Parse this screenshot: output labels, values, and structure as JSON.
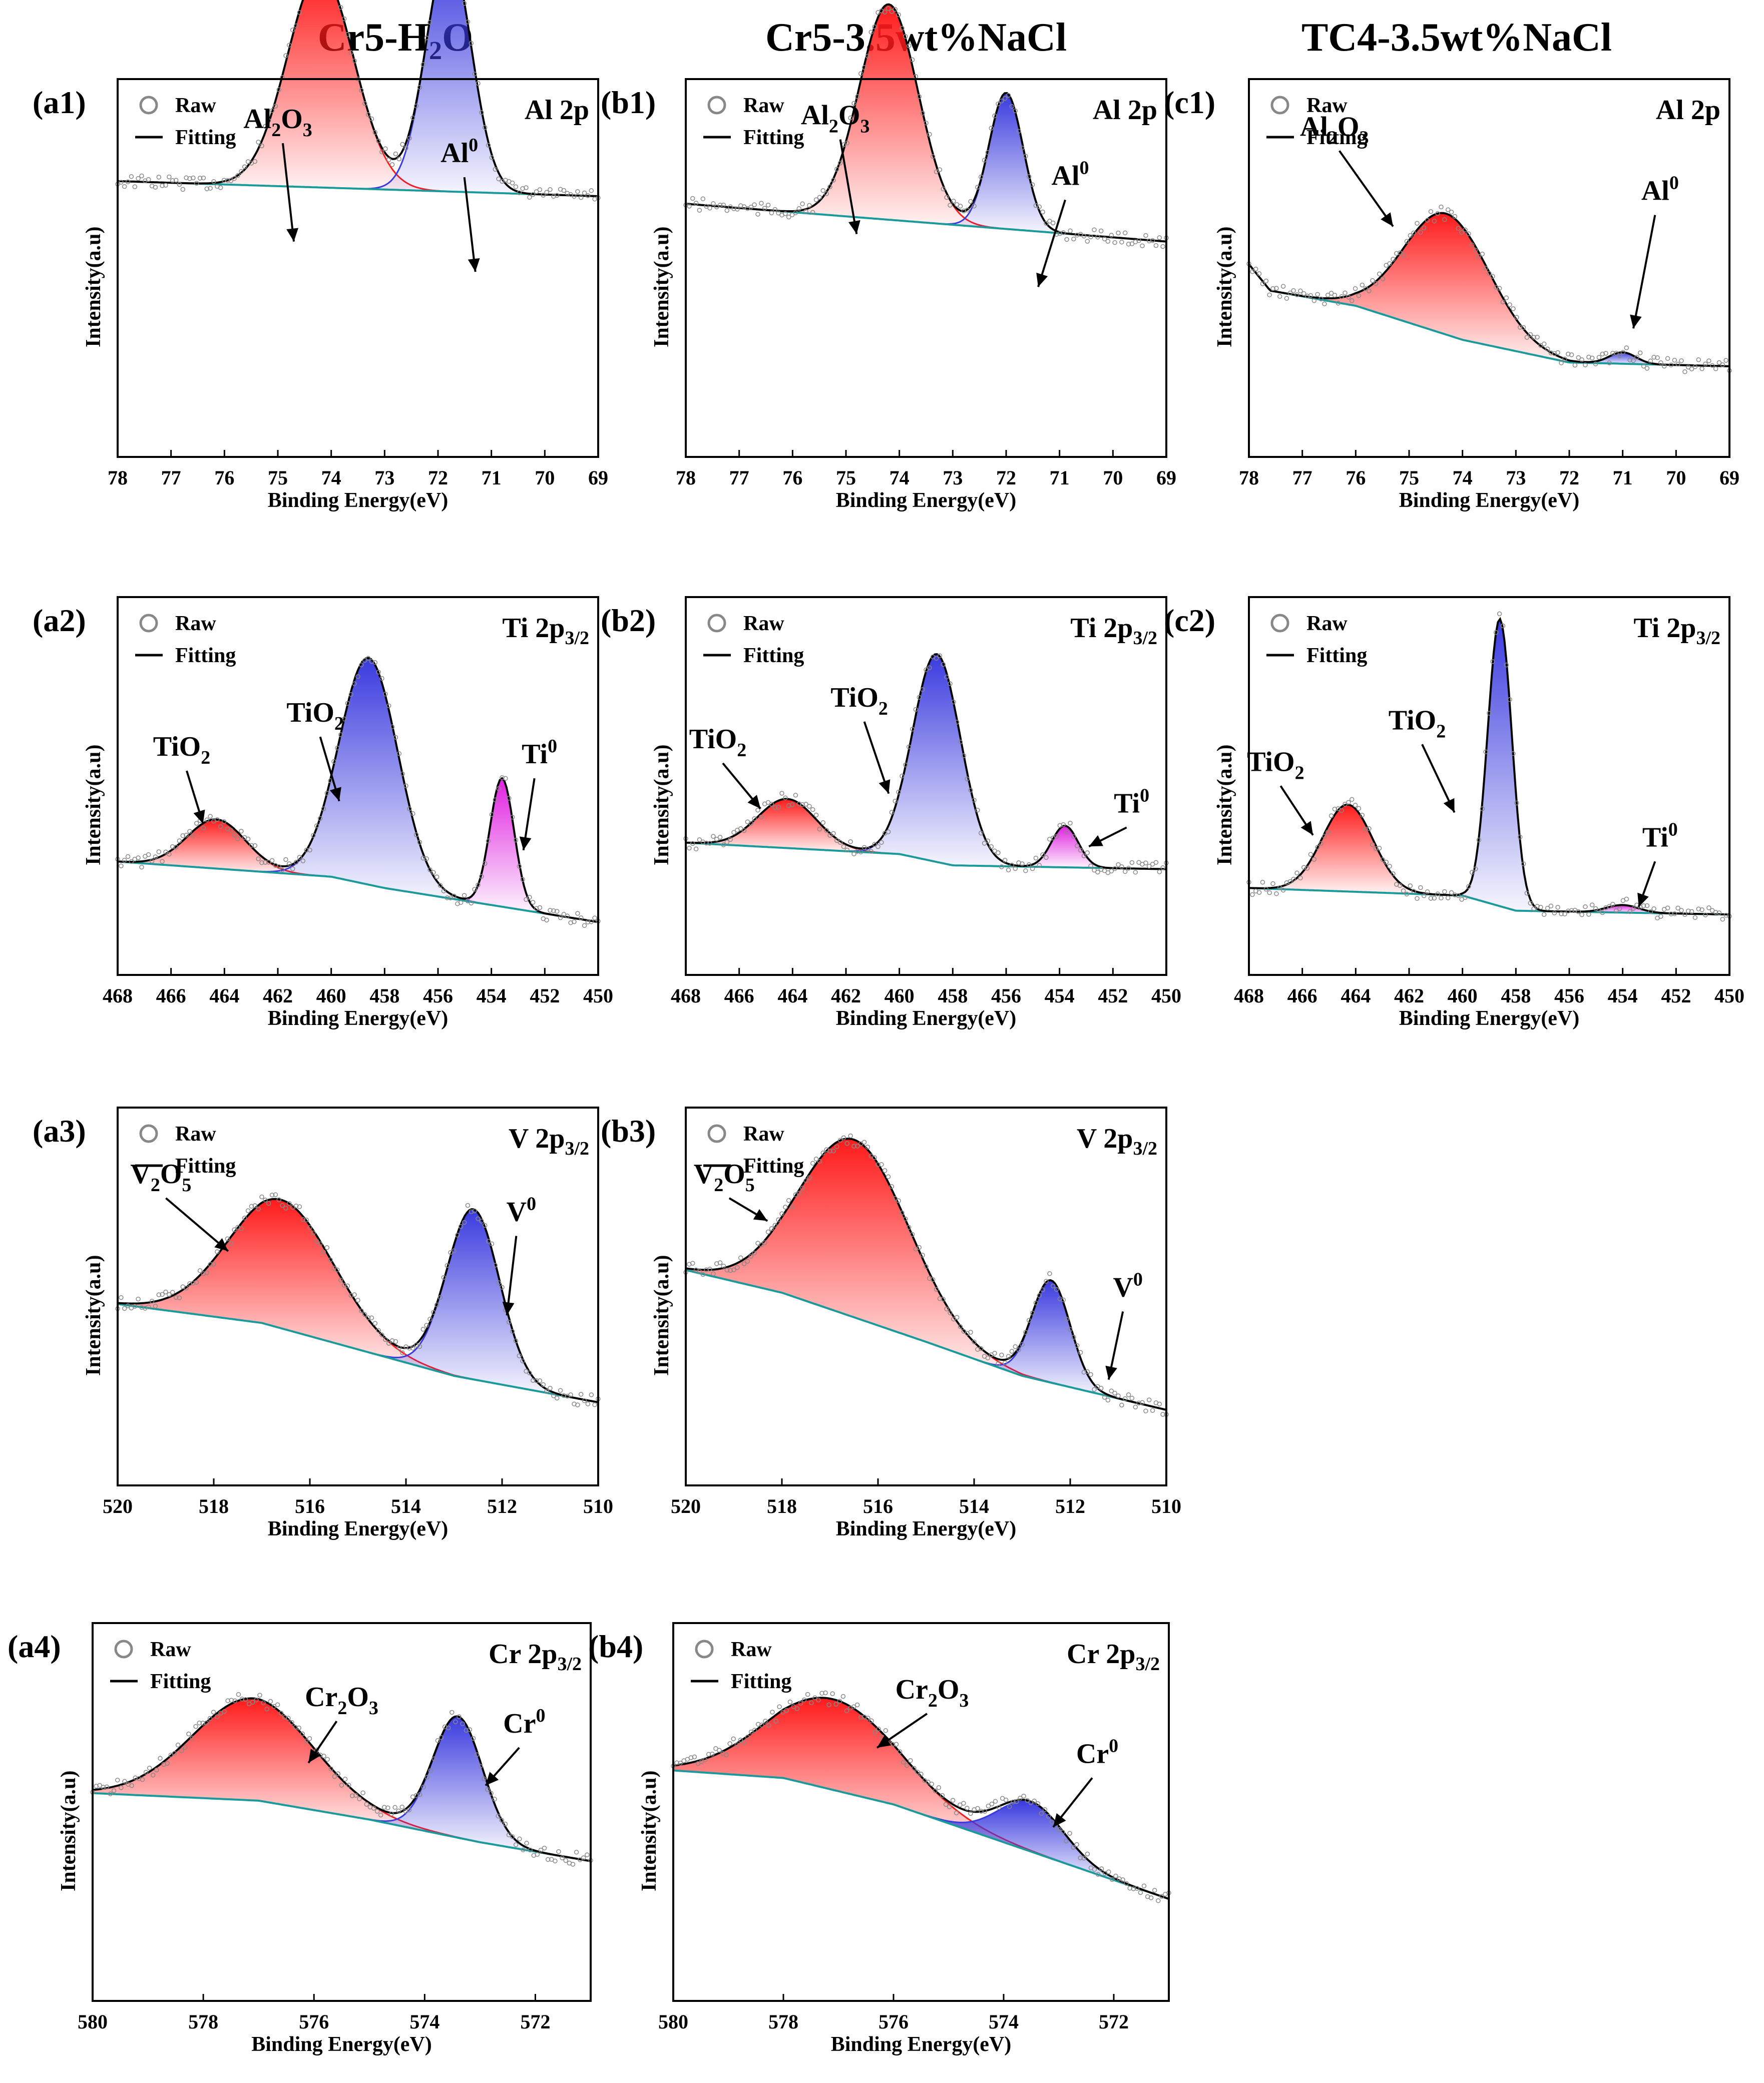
{
  "column_titles": [
    {
      "base": "Cr5-H",
      "sub": "2",
      "rest": "O"
    },
    {
      "base": "Cr5-3.5wt%NaCl",
      "sub": "",
      "rest": ""
    },
    {
      "base": "TC4-3.5wt%NaCl",
      "sub": "",
      "rest": ""
    }
  ],
  "legend": {
    "raw": "Raw",
    "fitting": "Fitting"
  },
  "colors": {
    "red": "#ff1a1a",
    "blue": "#3a3adf",
    "magenta": "#e020e0",
    "base": "#1a9a9a",
    "fit": "#000000",
    "raw": "#888888"
  },
  "chart_data": [
    {
      "id": "a1",
      "label": "(a1)",
      "type": "line",
      "element": "Al 2p",
      "element_base": "Al 2p",
      "element_sub": "",
      "xlabel": "Binding Energy(eV)",
      "ylabel": "Intensity(a.u)",
      "xlim": [
        78,
        69
      ],
      "ticks": [
        78,
        77,
        76,
        75,
        74,
        73,
        72,
        71,
        70,
        69
      ],
      "baseline": [
        [
          78,
          0.27
        ],
        [
          69,
          0.31
        ]
      ],
      "peaks": [
        {
          "center": 74.2,
          "height": 0.57,
          "width": 0.62,
          "color": "red",
          "name": "Al2O3"
        },
        {
          "center": 71.8,
          "height": 0.64,
          "width": 0.42,
          "color": "blue",
          "name": "Al0"
        }
      ],
      "annotations": [
        {
          "base": "Al",
          "sub": "2",
          "mid": "O",
          "sub2": "3",
          "sup": "",
          "tx": 75.0,
          "ty": 0.13,
          "ax": 74.7,
          "ay": 0.43
        },
        {
          "base": "Al",
          "sub": "",
          "mid": "",
          "sub2": "",
          "sup": "0",
          "tx": 71.6,
          "ty": 0.22,
          "ax": 71.3,
          "ay": 0.51
        }
      ]
    },
    {
      "id": "b1",
      "label": "(b1)",
      "type": "line",
      "element": "Al 2p",
      "element_base": "Al 2p",
      "element_sub": "",
      "xlabel": "Binding Energy(eV)",
      "ylabel": "Intensity(a.u)",
      "xlim": [
        78,
        69
      ],
      "ticks": [
        78,
        77,
        76,
        75,
        74,
        73,
        72,
        71,
        70,
        69
      ],
      "baseline": [
        [
          78,
          0.33
        ],
        [
          69,
          0.43
        ]
      ],
      "peaks": [
        {
          "center": 74.2,
          "height": 0.57,
          "width": 0.55,
          "color": "red",
          "name": "Al2O3"
        },
        {
          "center": 72.0,
          "height": 0.36,
          "width": 0.32,
          "color": "blue",
          "name": "Al0"
        }
      ],
      "annotations": [
        {
          "base": "Al",
          "sub": "2",
          "mid": "O",
          "sub2": "3",
          "sup": "",
          "tx": 75.2,
          "ty": 0.12,
          "ax": 74.8,
          "ay": 0.41
        },
        {
          "base": "Al",
          "sub": "",
          "mid": "",
          "sub2": "",
          "sup": "0",
          "tx": 70.8,
          "ty": 0.28,
          "ax": 71.4,
          "ay": 0.55
        }
      ]
    },
    {
      "id": "c1",
      "label": "(c1)",
      "type": "line",
      "element": "Al 2p",
      "element_base": "Al 2p",
      "element_sub": "",
      "xlabel": "Binding Energy(eV)",
      "ylabel": "Intensity(a.u)",
      "xlim": [
        78,
        69
      ],
      "ticks": [
        78,
        77,
        76,
        75,
        74,
        73,
        72,
        71,
        70,
        69
      ],
      "baseline": [
        [
          78,
          0.49
        ],
        [
          77.6,
          0.56
        ],
        [
          76,
          0.6
        ],
        [
          74,
          0.69
        ],
        [
          72,
          0.75
        ],
        [
          69,
          0.76
        ]
      ],
      "peaks": [
        {
          "center": 74.3,
          "height": 0.32,
          "width": 0.8,
          "color": "red",
          "name": "Al2O3"
        },
        {
          "center": 71.0,
          "height": 0.03,
          "width": 0.25,
          "color": "blue",
          "name": "Al0"
        }
      ],
      "annotations": [
        {
          "base": "Al",
          "sub": "2",
          "mid": "O",
          "sub2": "3",
          "sup": "",
          "tx": 76.4,
          "ty": 0.15,
          "ax": 75.3,
          "ay": 0.39
        },
        {
          "base": "Al",
          "sub": "",
          "mid": "",
          "sub2": "",
          "sup": "0",
          "tx": 70.3,
          "ty": 0.32,
          "ax": 70.8,
          "ay": 0.66
        }
      ]
    },
    {
      "id": "a2",
      "label": "(a2)",
      "type": "line",
      "element": "Ti 2p3/2",
      "element_base": "Ti 2p",
      "element_sub": "3/2",
      "xlabel": "Binding Energy(eV)",
      "ylabel": "Intensity(a.u)",
      "xlim": [
        468,
        450
      ],
      "ticks": [
        468,
        466,
        464,
        462,
        460,
        458,
        456,
        454,
        452,
        450
      ],
      "baseline": [
        [
          468,
          0.7
        ],
        [
          460,
          0.74
        ],
        [
          458,
          0.77
        ],
        [
          450,
          0.86
        ]
      ],
      "peaks": [
        {
          "center": 464.3,
          "height": 0.13,
          "width": 1.1,
          "color": "red",
          "name": "TiO2"
        },
        {
          "center": 458.6,
          "height": 0.6,
          "width": 1.1,
          "color": "blue",
          "name": "TiO2"
        },
        {
          "center": 453.6,
          "height": 0.34,
          "width": 0.45,
          "color": "magenta",
          "name": "Ti0"
        }
      ],
      "annotations": [
        {
          "base": "TiO",
          "sub": "2",
          "mid": "",
          "sub2": "",
          "sup": "",
          "tx": 465.6,
          "ty": 0.42,
          "ax": 464.8,
          "ay": 0.6
        },
        {
          "base": "TiO",
          "sub": "2",
          "mid": "",
          "sub2": "",
          "sup": "",
          "tx": 460.6,
          "ty": 0.33,
          "ax": 459.7,
          "ay": 0.54
        },
        {
          "base": "Ti",
          "sub": "",
          "mid": "",
          "sub2": "",
          "sup": "0",
          "tx": 452.2,
          "ty": 0.44,
          "ax": 452.8,
          "ay": 0.67
        }
      ]
    },
    {
      "id": "b2",
      "label": "(b2)",
      "type": "line",
      "element": "Ti 2p3/2",
      "element_base": "Ti 2p",
      "element_sub": "3/2",
      "xlabel": "Binding Energy(eV)",
      "ylabel": "Intensity(a.u)",
      "xlim": [
        468,
        450
      ],
      "ticks": [
        468,
        466,
        464,
        462,
        460,
        458,
        456,
        454,
        452,
        450
      ],
      "baseline": [
        [
          468,
          0.65
        ],
        [
          460,
          0.68
        ],
        [
          458,
          0.71
        ],
        [
          450,
          0.72
        ]
      ],
      "peaks": [
        {
          "center": 464.2,
          "height": 0.13,
          "width": 1.1,
          "color": "red",
          "name": "TiO2"
        },
        {
          "center": 458.6,
          "height": 0.55,
          "width": 0.9,
          "color": "blue",
          "name": "TiO2"
        },
        {
          "center": 453.8,
          "height": 0.11,
          "width": 0.5,
          "color": "magenta",
          "name": "Ti0"
        }
      ],
      "annotations": [
        {
          "base": "TiO",
          "sub": "2",
          "mid": "",
          "sub2": "",
          "sup": "",
          "tx": 466.8,
          "ty": 0.4,
          "ax": 465.2,
          "ay": 0.56
        },
        {
          "base": "TiO",
          "sub": "2",
          "mid": "",
          "sub2": "",
          "sup": "",
          "tx": 461.5,
          "ty": 0.29,
          "ax": 460.4,
          "ay": 0.52
        },
        {
          "base": "Ti",
          "sub": "",
          "mid": "",
          "sub2": "",
          "sup": "0",
          "tx": 451.3,
          "ty": 0.57,
          "ax": 452.9,
          "ay": 0.66
        }
      ]
    },
    {
      "id": "c2",
      "label": "(c2)",
      "type": "line",
      "element": "Ti 2p3/2",
      "element_base": "Ti 2p",
      "element_sub": "3/2",
      "xlabel": "Binding Energy(eV)",
      "ylabel": "Intensity(a.u)",
      "xlim": [
        468,
        450
      ],
      "ticks": [
        468,
        466,
        464,
        462,
        460,
        458,
        456,
        454,
        452,
        450
      ],
      "baseline": [
        [
          468,
          0.77
        ],
        [
          460,
          0.79
        ],
        [
          458,
          0.83
        ],
        [
          450,
          0.84
        ]
      ],
      "peaks": [
        {
          "center": 464.3,
          "height": 0.23,
          "width": 0.95,
          "color": "red",
          "name": "TiO2"
        },
        {
          "center": 458.6,
          "height": 0.76,
          "width": 0.45,
          "color": "blue",
          "name": "TiO2"
        },
        {
          "center": 454.0,
          "height": 0.02,
          "width": 0.6,
          "color": "magenta",
          "name": "Ti0"
        }
      ],
      "annotations": [
        {
          "base": "TiO",
          "sub": "2",
          "mid": "",
          "sub2": "",
          "sup": "",
          "tx": 467.0,
          "ty": 0.46,
          "ax": 465.6,
          "ay": 0.63
        },
        {
          "base": "TiO",
          "sub": "2",
          "mid": "",
          "sub2": "",
          "sup": "",
          "tx": 461.7,
          "ty": 0.35,
          "ax": 460.3,
          "ay": 0.57
        },
        {
          "base": "Ti",
          "sub": "",
          "mid": "",
          "sub2": "",
          "sup": "0",
          "tx": 452.6,
          "ty": 0.66,
          "ax": 453.4,
          "ay": 0.82
        }
      ]
    },
    {
      "id": "a3",
      "label": "(a3)",
      "type": "line",
      "element": "V 2p3/2",
      "element_base": "V 2p",
      "element_sub": "3/2",
      "xlabel": "Binding Energy(eV)",
      "ylabel": "Intensity(a.u)",
      "xlim": [
        520,
        510
      ],
      "ticks": [
        520,
        518,
        516,
        514,
        512,
        510
      ],
      "baseline": [
        [
          520,
          0.52
        ],
        [
          517,
          0.57
        ],
        [
          515,
          0.64
        ],
        [
          513,
          0.71
        ],
        [
          510,
          0.78
        ]
      ],
      "peaks": [
        {
          "center": 516.6,
          "height": 0.34,
          "width": 1.1,
          "color": "red",
          "name": "V2O5"
        },
        {
          "center": 512.6,
          "height": 0.45,
          "width": 0.55,
          "color": "blue",
          "name": "V0"
        }
      ],
      "annotations": [
        {
          "base": "V",
          "sub": "2",
          "mid": "O",
          "sub2": "5",
          "sup": "",
          "tx": 519.1,
          "ty": 0.2,
          "ax": 517.7,
          "ay": 0.38
        },
        {
          "base": "V",
          "sub": "",
          "mid": "",
          "sub2": "",
          "sup": "0",
          "tx": 511.6,
          "ty": 0.3,
          "ax": 511.9,
          "ay": 0.55
        }
      ]
    },
    {
      "id": "b3",
      "label": "(b3)",
      "type": "line",
      "element": "V 2p3/2",
      "element_base": "V 2p",
      "element_sub": "3/2",
      "xlabel": "Binding Energy(eV)",
      "ylabel": "Intensity(a.u)",
      "xlim": [
        520,
        510
      ],
      "ticks": [
        520,
        518,
        516,
        514,
        512,
        510
      ],
      "baseline": [
        [
          520,
          0.43
        ],
        [
          518,
          0.49
        ],
        [
          515,
          0.62
        ],
        [
          513,
          0.71
        ],
        [
          510,
          0.8
        ]
      ],
      "peaks": [
        {
          "center": 516.5,
          "height": 0.47,
          "width": 1.15,
          "color": "red",
          "name": "V2O5"
        },
        {
          "center": 512.4,
          "height": 0.27,
          "width": 0.4,
          "color": "blue",
          "name": "V0"
        }
      ],
      "annotations": [
        {
          "base": "V",
          "sub": "2",
          "mid": "O",
          "sub2": "5",
          "sup": "",
          "tx": 519.2,
          "ty": 0.2,
          "ax": 518.3,
          "ay": 0.3
        },
        {
          "base": "V",
          "sub": "",
          "mid": "",
          "sub2": "",
          "sup": "0",
          "tx": 510.8,
          "ty": 0.5,
          "ax": 511.2,
          "ay": 0.72
        }
      ]
    },
    {
      "id": "a4",
      "label": "(a4)",
      "type": "line",
      "element": "Cr 2p3/2",
      "element_base": "Cr 2p",
      "element_sub": "3/2",
      "xlabel": "Binding Energy(eV)",
      "ylabel": "Intensity(a.u)",
      "xlim": [
        580,
        571
      ],
      "ticks": [
        580,
        578,
        576,
        574,
        572
      ],
      "baseline": [
        [
          580,
          0.45
        ],
        [
          577,
          0.47
        ],
        [
          575,
          0.52
        ],
        [
          573,
          0.58
        ],
        [
          571,
          0.63
        ]
      ],
      "peaks": [
        {
          "center": 577.1,
          "height": 0.27,
          "width": 1.1,
          "color": "red",
          "name": "Cr2O3"
        },
        {
          "center": 573.4,
          "height": 0.32,
          "width": 0.45,
          "color": "blue",
          "name": "Cr0"
        }
      ],
      "annotations": [
        {
          "base": "Cr",
          "sub": "2",
          "mid": "O",
          "sub2": "3",
          "sup": "",
          "tx": 575.5,
          "ty": 0.22,
          "ax": 576.1,
          "ay": 0.37
        },
        {
          "base": "Cr",
          "sub": "",
          "mid": "",
          "sub2": "",
          "sup": "0",
          "tx": 572.2,
          "ty": 0.29,
          "ax": 572.9,
          "ay": 0.43
        }
      ]
    },
    {
      "id": "b4",
      "label": "(b4)",
      "type": "line",
      "element": "Cr 2p3/2",
      "element_base": "Cr 2p",
      "element_sub": "3/2",
      "xlabel": "Binding Energy(eV)",
      "ylabel": "Intensity(a.u)",
      "xlim": [
        580,
        571
      ],
      "ticks": [
        580,
        578,
        576,
        574,
        572
      ],
      "baseline": [
        [
          580,
          0.39
        ],
        [
          578,
          0.41
        ],
        [
          576,
          0.48
        ],
        [
          574,
          0.58
        ],
        [
          571,
          0.73
        ]
      ],
      "peaks": [
        {
          "center": 577.1,
          "height": 0.24,
          "width": 1.2,
          "color": "red",
          "name": "Cr2O3"
        },
        {
          "center": 573.5,
          "height": 0.13,
          "width": 0.6,
          "color": "blue",
          "name": "Cr0"
        }
      ],
      "annotations": [
        {
          "base": "Cr",
          "sub": "2",
          "mid": "O",
          "sub2": "3",
          "sup": "",
          "tx": 575.3,
          "ty": 0.2,
          "ax": 576.3,
          "ay": 0.33
        },
        {
          "base": "Cr",
          "sub": "",
          "mid": "",
          "sub2": "",
          "sup": "0",
          "tx": 572.3,
          "ty": 0.37,
          "ax": 573.1,
          "ay": 0.54
        }
      ]
    }
  ]
}
